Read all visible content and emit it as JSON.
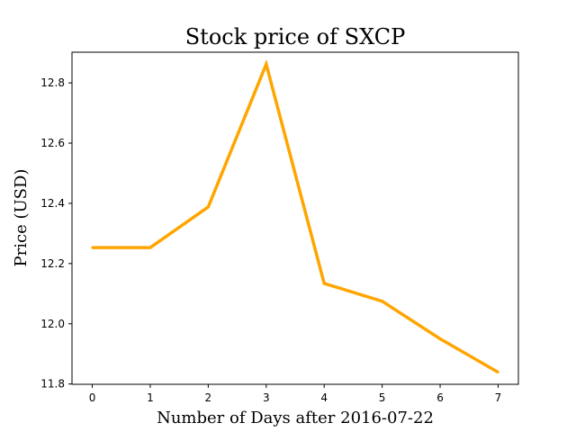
{
  "chart_data": {
    "type": "line",
    "title": "Stock price of SXCP",
    "xlabel": "Number of Days after 2016-07-22",
    "ylabel": "Price (USD)",
    "x": [
      0,
      1,
      2,
      3,
      4,
      5,
      6,
      7
    ],
    "series": [
      {
        "values": [
          12.253,
          12.253,
          12.388,
          12.862,
          12.134,
          12.075,
          11.95,
          11.839
        ],
        "color": "#FFA500"
      }
    ],
    "xticks": [
      "0",
      "1",
      "2",
      "3",
      "4",
      "5",
      "6",
      "7"
    ],
    "yticks": [
      "11.8",
      "12.0",
      "12.2",
      "12.4",
      "12.6",
      "12.8"
    ],
    "xlim": [
      -0.35,
      7.35
    ],
    "ylim": [
      11.799,
      12.902
    ],
    "grid": false,
    "legend": "none"
  }
}
